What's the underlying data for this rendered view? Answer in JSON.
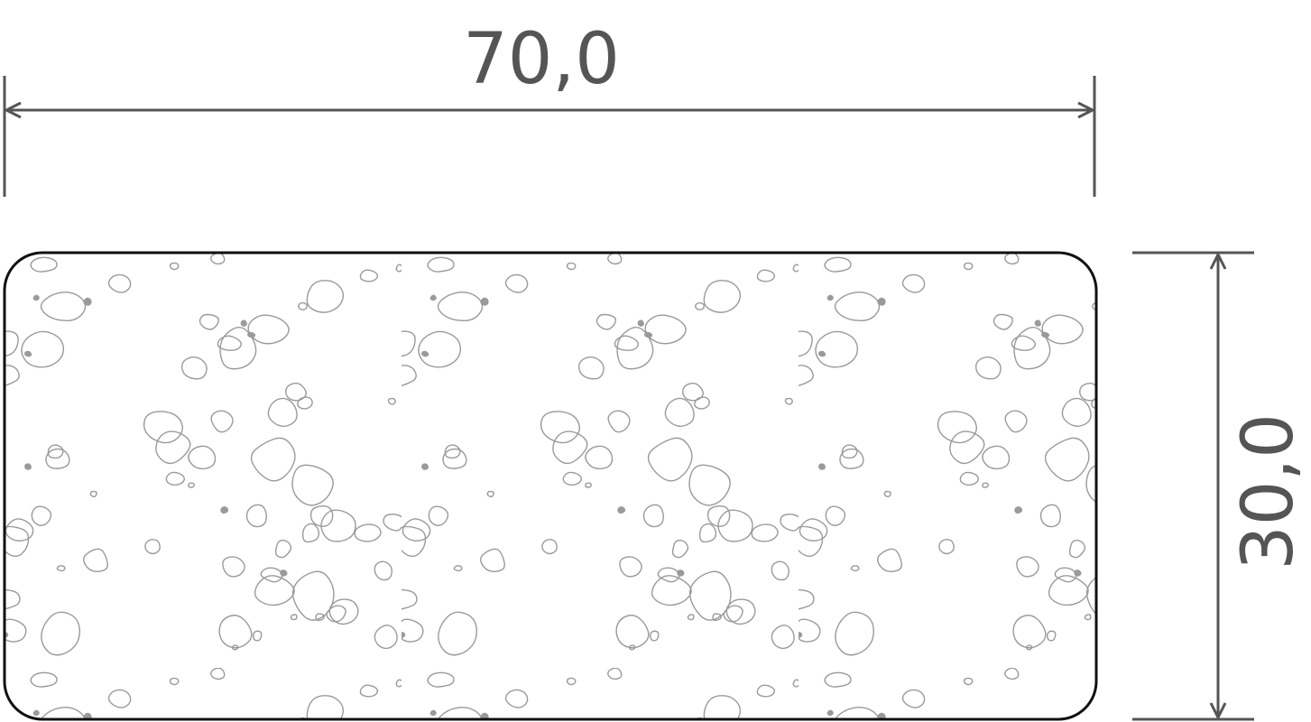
{
  "drawing": {
    "width_dimension": "70,0",
    "height_dimension": "30,0",
    "section_hatch": "concrete-aggregate",
    "colors": {
      "outline": "#111111",
      "dimension": "#555555",
      "aggregate": "#9a9a9a"
    }
  }
}
